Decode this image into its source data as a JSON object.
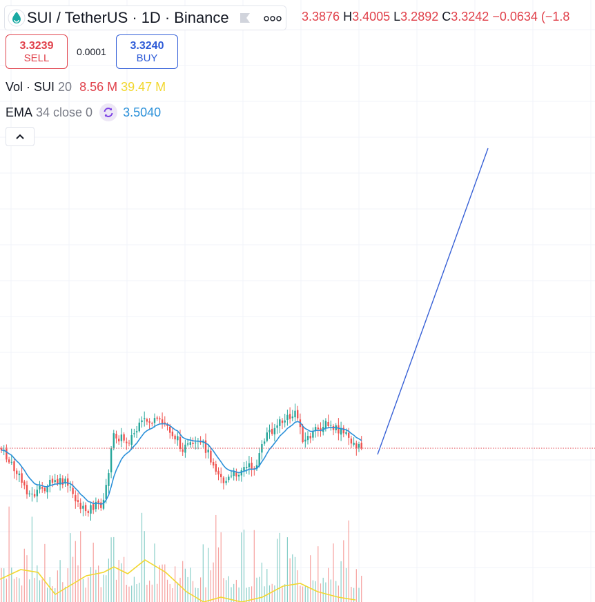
{
  "header": {
    "symbol": "SUI",
    "quote": "TetherUS",
    "interval": "1D",
    "exchange": "Binance"
  },
  "ohlc": {
    "o_value": "3.3876",
    "h_label": "H",
    "h_value": "3.4005",
    "l_label": "L",
    "l_value": "3.2892",
    "c_label": "C",
    "c_value": "3.3242",
    "change": "−0.0634 (−1.8"
  },
  "trade": {
    "sell_price": "3.3239",
    "sell_label": "SELL",
    "spread": "0.0001",
    "buy_price": "3.3240",
    "buy_label": "BUY"
  },
  "indicators": {
    "vol_name": "Vol · SUI",
    "vol_length": "20",
    "vol_value": "8.56 M",
    "vol_ma_value": "39.47 M",
    "ema_name": "EMA",
    "ema_params": "34 close 0",
    "ema_value": "3.5040"
  },
  "colors": {
    "up": "#26a69a",
    "down": "#ef5350",
    "ema": "#2a90d9",
    "volume_ma": "#f2d72e",
    "drawing_line": "#3760d6",
    "price_line": "#e0404a",
    "grid": "#f0f3fa"
  },
  "icons": {
    "symbol_logo": "sui-logo-icon",
    "flag": "flag-icon",
    "more": "more-horizontal-icon",
    "sync": "sync-icon",
    "collapse": "chevron-up-icon"
  }
}
